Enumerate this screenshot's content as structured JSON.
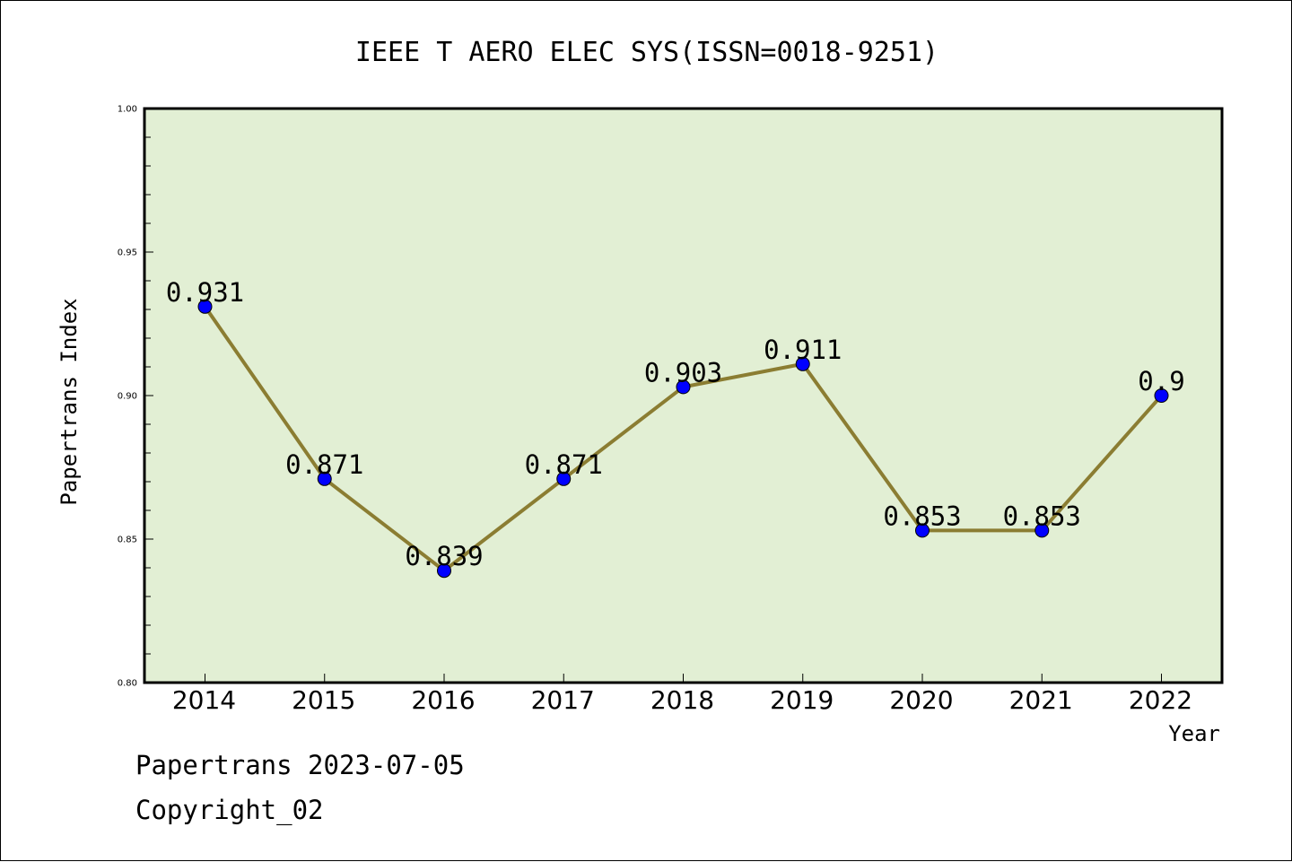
{
  "chart_data": {
    "type": "line",
    "title": "IEEE T AERO ELEC SYS(ISSN=0018-9251)",
    "xlabel": "Year",
    "ylabel": "Papertrans Index",
    "categories": [
      "2014",
      "2015",
      "2016",
      "2017",
      "2018",
      "2019",
      "2020",
      "2021",
      "2022"
    ],
    "values": [
      0.931,
      0.871,
      0.839,
      0.871,
      0.903,
      0.911,
      0.853,
      0.853,
      0.9
    ],
    "data_labels": [
      "0.931",
      "0.871",
      "0.839",
      "0.871",
      "0.903",
      "0.911",
      "0.853",
      "0.853",
      "0.9"
    ],
    "ylim": [
      0.8,
      1.0
    ],
    "yticks": [
      0.8,
      0.85,
      0.9,
      0.95,
      1.0
    ],
    "ytick_labels": [
      "0.80",
      "0.85",
      "0.90",
      "0.95",
      "1.00"
    ],
    "grid": false,
    "legend": "none",
    "colors": {
      "plot_background": "#e2efd4",
      "line": "#8b7d32",
      "marker": "#0000ff"
    }
  },
  "footer": {
    "line1": "Papertrans 2023-07-05",
    "line2": "Copyright_02"
  }
}
